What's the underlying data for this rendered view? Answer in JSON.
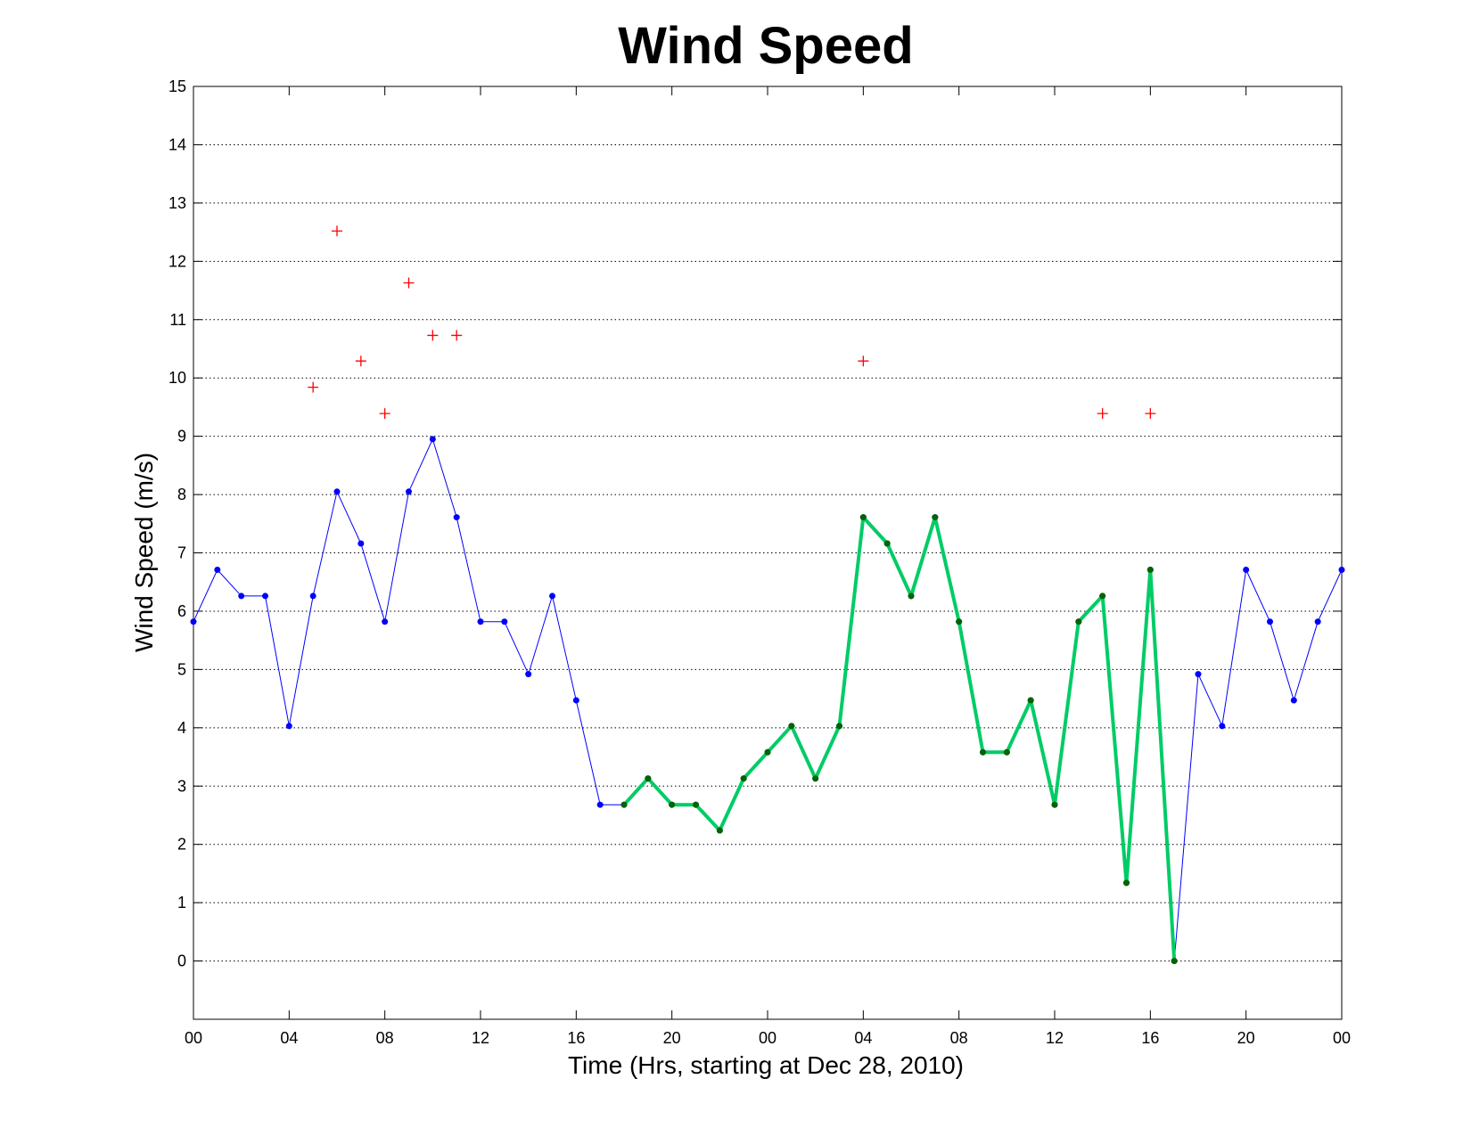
{
  "chart_data": {
    "type": "line",
    "title": "Wind Speed",
    "xlabel": "Time (Hrs, starting at Dec 28, 2010)",
    "ylabel": "Wind Speed (m/s)",
    "xlim": [
      0,
      48
    ],
    "ylim": [
      -1,
      15
    ],
    "grid": "horizontal-dotted",
    "x_ticks": [
      {
        "value": 0,
        "label": "00"
      },
      {
        "value": 4,
        "label": "04"
      },
      {
        "value": 8,
        "label": "08"
      },
      {
        "value": 12,
        "label": "12"
      },
      {
        "value": 16,
        "label": "16"
      },
      {
        "value": 20,
        "label": "20"
      },
      {
        "value": 24,
        "label": "00"
      },
      {
        "value": 28,
        "label": "04"
      },
      {
        "value": 32,
        "label": "08"
      },
      {
        "value": 36,
        "label": "12"
      },
      {
        "value": 40,
        "label": "16"
      },
      {
        "value": 44,
        "label": "20"
      },
      {
        "value": 48,
        "label": "00"
      }
    ],
    "y_ticks": [
      "0",
      "1",
      "2",
      "3",
      "4",
      "5",
      "6",
      "7",
      "8",
      "9",
      "10",
      "11",
      "12",
      "13",
      "14",
      "15"
    ],
    "series": [
      {
        "style": "thin-line-dots",
        "color": "#0000ff",
        "x": [
          0,
          1,
          2,
          3,
          4,
          5,
          6,
          7,
          8,
          9,
          10,
          11,
          12,
          13,
          14,
          15,
          16,
          17,
          18,
          19,
          20,
          21,
          22,
          23,
          24,
          25,
          26,
          27,
          28,
          29,
          30,
          31,
          32,
          33,
          34,
          35,
          36,
          37,
          38,
          39,
          40,
          41,
          42,
          43,
          44,
          45,
          46,
          47,
          48
        ],
        "y": [
          5.82,
          6.71,
          6.26,
          6.26,
          4.03,
          6.26,
          8.05,
          7.16,
          5.82,
          8.05,
          8.95,
          7.61,
          5.82,
          5.82,
          4.92,
          6.26,
          4.47,
          2.68,
          2.68,
          3.13,
          2.68,
          2.68,
          2.24,
          3.13,
          3.58,
          4.03,
          3.13,
          4.03,
          7.61,
          7.16,
          6.26,
          7.61,
          5.82,
          3.58,
          3.58,
          4.47,
          2.68,
          5.82,
          6.26,
          1.34,
          6.71,
          0,
          4.92,
          4.03,
          6.71,
          5.82,
          4.47,
          5.82,
          6.71
        ]
      },
      {
        "style": "thick-line-dots",
        "color": "#00cc66",
        "marker_color": "#006400",
        "x": [
          18,
          19,
          20,
          21,
          22,
          23,
          24,
          25,
          26,
          27,
          28,
          29,
          30,
          31,
          32,
          33,
          34,
          35,
          36,
          37,
          38,
          39,
          40,
          41
        ],
        "y": [
          2.68,
          3.13,
          2.68,
          2.68,
          2.24,
          3.13,
          3.58,
          4.03,
          3.13,
          4.03,
          7.61,
          7.16,
          6.26,
          7.61,
          5.82,
          3.58,
          3.58,
          4.47,
          2.68,
          5.82,
          6.26,
          1.34,
          6.71,
          0
        ]
      },
      {
        "style": "plus-markers",
        "color": "#ff0000",
        "x": [
          5,
          6,
          7,
          8,
          9,
          10,
          11,
          28,
          38,
          40
        ],
        "y": [
          9.84,
          12.52,
          10.29,
          9.39,
          11.63,
          10.73,
          10.73,
          10.29,
          9.39,
          9.39
        ]
      }
    ]
  }
}
